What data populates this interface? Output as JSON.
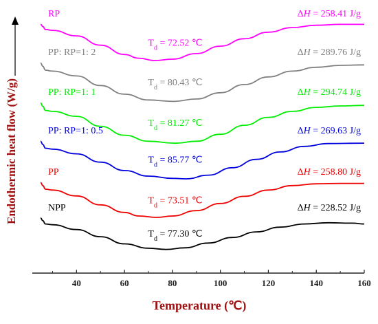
{
  "chart_data": {
    "type": "line",
    "xlabel": "Temperature (℃)",
    "ylabel": "Endothermic heat flow (W/g)",
    "xlim": [
      25,
      160
    ],
    "xticks": [
      "40",
      "60",
      "80",
      "100",
      "120",
      "140",
      "160"
    ],
    "xtick_values": [
      40,
      60,
      80,
      100,
      120,
      140,
      160
    ],
    "colors": {
      "axis_title": "#a01010"
    },
    "series": [
      {
        "name": "RP",
        "color": "#ff00ff",
        "td_label": "T_d = 72.52 ℃",
        "dh_label": "ΔH = 258.41 J/g",
        "points": [
          [
            25,
            0.95
          ],
          [
            26,
            0.9
          ],
          [
            27,
            0.84
          ],
          [
            30,
            0.82
          ],
          [
            40,
            0.7
          ],
          [
            50,
            0.5
          ],
          [
            60,
            0.3
          ],
          [
            66,
            0.22
          ],
          [
            72.52,
            0.17
          ],
          [
            80,
            0.2
          ],
          [
            90,
            0.32
          ],
          [
            100,
            0.48
          ],
          [
            110,
            0.64
          ],
          [
            120,
            0.78
          ],
          [
            130,
            0.88
          ],
          [
            140,
            0.93
          ],
          [
            150,
            0.95
          ],
          [
            160,
            0.95
          ]
        ]
      },
      {
        "name": "PP: RP=1: 2",
        "color": "#808080",
        "td_label": "T_d = 80.43 ℃",
        "dh_label": "ΔH = 289.76 J/g",
        "points": [
          [
            25,
            0.95
          ],
          [
            26,
            0.88
          ],
          [
            27,
            0.8
          ],
          [
            30,
            0.78
          ],
          [
            40,
            0.68
          ],
          [
            50,
            0.48
          ],
          [
            60,
            0.3
          ],
          [
            70,
            0.18
          ],
          [
            80.43,
            0.15
          ],
          [
            90,
            0.2
          ],
          [
            100,
            0.33
          ],
          [
            110,
            0.5
          ],
          [
            120,
            0.66
          ],
          [
            130,
            0.78
          ],
          [
            140,
            0.86
          ],
          [
            150,
            0.9
          ],
          [
            160,
            0.91
          ]
        ]
      },
      {
        "name": "PP: RP=1: 1",
        "color": "#00ee00",
        "td_label": "T_d = 81.27 ℃",
        "dh_label": "ΔH = 294.74 J/g",
        "points": [
          [
            25,
            0.95
          ],
          [
            26,
            0.88
          ],
          [
            27,
            0.8
          ],
          [
            30,
            0.78
          ],
          [
            40,
            0.68
          ],
          [
            50,
            0.48
          ],
          [
            60,
            0.3
          ],
          [
            70,
            0.18
          ],
          [
            81.27,
            0.14
          ],
          [
            90,
            0.18
          ],
          [
            100,
            0.32
          ],
          [
            110,
            0.5
          ],
          [
            120,
            0.66
          ],
          [
            130,
            0.78
          ],
          [
            140,
            0.86
          ],
          [
            150,
            0.89
          ],
          [
            160,
            0.9
          ]
        ]
      },
      {
        "name": "PP: RP=1: 0.5",
        "color": "#0000dd",
        "td_label": "T_d = 85.77 ℃",
        "dh_label": "ΔH = 269.63 J/g",
        "points": [
          [
            25,
            0.95
          ],
          [
            26,
            0.88
          ],
          [
            27,
            0.8
          ],
          [
            30,
            0.78
          ],
          [
            40,
            0.68
          ],
          [
            50,
            0.5
          ],
          [
            60,
            0.32
          ],
          [
            70,
            0.2
          ],
          [
            80,
            0.15
          ],
          [
            85.77,
            0.14
          ],
          [
            95,
            0.22
          ],
          [
            105,
            0.38
          ],
          [
            115,
            0.56
          ],
          [
            125,
            0.72
          ],
          [
            135,
            0.84
          ],
          [
            145,
            0.9
          ],
          [
            160,
            0.91
          ]
        ]
      },
      {
        "name": "PP",
        "color": "#ee0000",
        "td_label": "T_d = 73.51 ℃",
        "dh_label": "ΔH = 258.80 J/g",
        "points": [
          [
            25,
            0.95
          ],
          [
            26,
            0.88
          ],
          [
            27,
            0.8
          ],
          [
            30,
            0.78
          ],
          [
            40,
            0.65
          ],
          [
            50,
            0.45
          ],
          [
            60,
            0.28
          ],
          [
            66,
            0.2
          ],
          [
            73.51,
            0.17
          ],
          [
            80,
            0.2
          ],
          [
            90,
            0.32
          ],
          [
            100,
            0.48
          ],
          [
            110,
            0.64
          ],
          [
            120,
            0.78
          ],
          [
            130,
            0.88
          ],
          [
            140,
            0.92
          ],
          [
            150,
            0.93
          ],
          [
            160,
            0.93
          ]
        ]
      },
      {
        "name": "NPP",
        "color": "#000000",
        "td_label": "T_d = 77.30 ℃",
        "dh_label": "ΔH = 228.52 J/g",
        "points": [
          [
            25,
            0.95
          ],
          [
            26,
            0.88
          ],
          [
            27,
            0.8
          ],
          [
            30,
            0.78
          ],
          [
            40,
            0.66
          ],
          [
            50,
            0.48
          ],
          [
            60,
            0.3
          ],
          [
            70,
            0.19
          ],
          [
            77.3,
            0.16
          ],
          [
            85,
            0.2
          ],
          [
            95,
            0.32
          ],
          [
            105,
            0.46
          ],
          [
            115,
            0.6
          ],
          [
            125,
            0.72
          ],
          [
            135,
            0.8
          ],
          [
            145,
            0.83
          ],
          [
            155,
            0.82
          ],
          [
            160,
            0.8
          ]
        ]
      }
    ]
  }
}
